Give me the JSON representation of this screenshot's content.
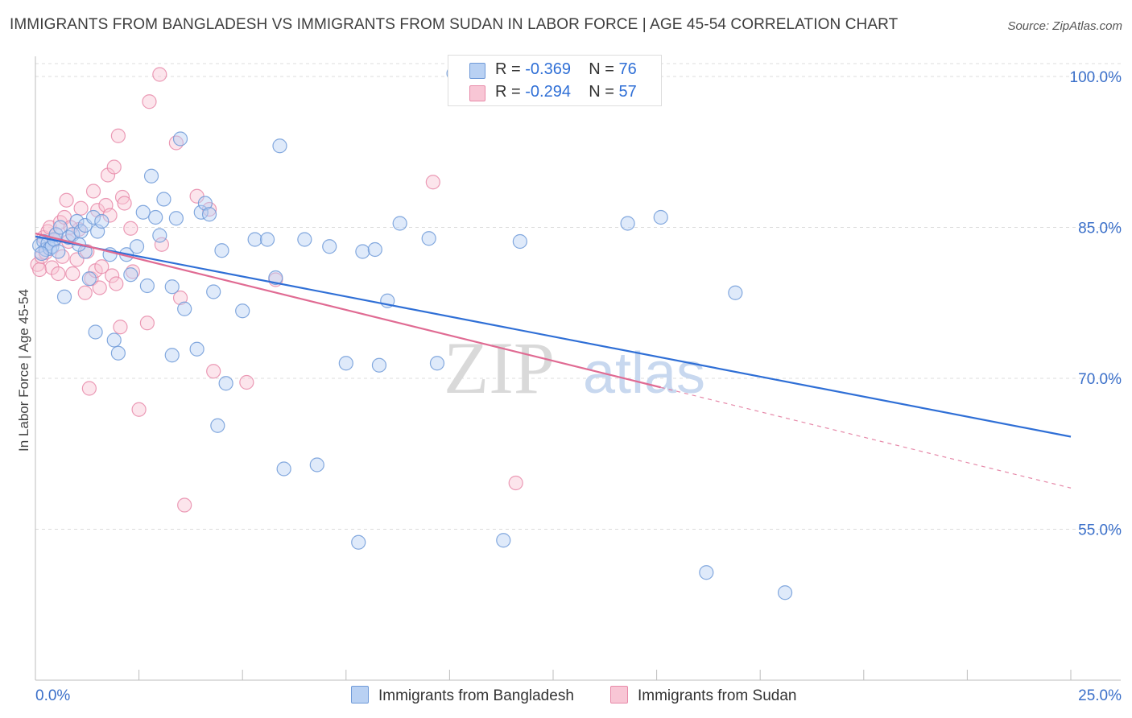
{
  "title": "IMMIGRANTS FROM BANGLADESH VS IMMIGRANTS FROM SUDAN IN LABOR FORCE | AGE 45-54 CORRELATION CHART",
  "source": "Source: ZipAtlas.com",
  "watermark": {
    "zip": "ZIP",
    "atlas": "atlas"
  },
  "legend": {
    "rows": [
      {
        "r_label": "R = ",
        "r_value": "-0.369",
        "n_label": "N = ",
        "n_value": "76"
      },
      {
        "r_label": "R = ",
        "r_value": "-0.294",
        "n_label": "N = ",
        "n_value": "57"
      }
    ]
  },
  "colors": {
    "blue_fill": "#b9d1f3",
    "blue_stroke": "#6f9ad8",
    "blue_line": "#2f6fd6",
    "pink_fill": "#f8c6d5",
    "pink_stroke": "#e88aa9",
    "pink_line": "#e06b93",
    "grid": "#dcdcdc",
    "axis_text": "#3a6fc9"
  },
  "chart_data": {
    "type": "scatter",
    "title": "IMMIGRANTS FROM BANGLADESH VS IMMIGRANTS FROM SUDAN IN LABOR FORCE | AGE 45-54 CORRELATION CHART",
    "xlabel": "",
    "ylabel": "In Labor Force | Age 45-54",
    "xlim": [
      0,
      25
    ],
    "ylim": [
      40,
      102
    ],
    "x_tick_labels": [
      "0.0%",
      "25.0%"
    ],
    "y_ticks": [
      55,
      70,
      85,
      100
    ],
    "y_tick_labels": [
      "55.0%",
      "70.0%",
      "85.0%",
      "100.0%"
    ],
    "grid": "horizontal dashed",
    "legend_position": "top-center",
    "series": [
      {
        "name": "Immigrants from Bangladesh",
        "color": "#6f9ad8",
        "R": -0.369,
        "N": 76,
        "trend": {
          "x": [
            0,
            25
          ],
          "y": [
            84.1,
            64.2
          ],
          "dashed_after": null
        },
        "points": [
          [
            0.1,
            83.2
          ],
          [
            0.2,
            83.6
          ],
          [
            0.25,
            82.8
          ],
          [
            0.3,
            83.4
          ],
          [
            0.35,
            82.9
          ],
          [
            0.4,
            83.1
          ],
          [
            0.45,
            83.8
          ],
          [
            0.5,
            84.3
          ],
          [
            0.6,
            85.0
          ],
          [
            0.7,
            78.1
          ],
          [
            0.8,
            84.0
          ],
          [
            0.9,
            84.3
          ],
          [
            1.0,
            85.6
          ],
          [
            1.1,
            84.6
          ],
          [
            1.2,
            82.6
          ],
          [
            1.2,
            85.2
          ],
          [
            1.3,
            79.9
          ],
          [
            1.4,
            86.0
          ],
          [
            1.45,
            74.6
          ],
          [
            1.5,
            84.6
          ],
          [
            1.6,
            85.6
          ],
          [
            1.8,
            82.3
          ],
          [
            1.9,
            73.8
          ],
          [
            2.0,
            72.5
          ],
          [
            2.2,
            82.3
          ],
          [
            2.3,
            80.3
          ],
          [
            2.6,
            86.5
          ],
          [
            2.8,
            90.1
          ],
          [
            2.9,
            86.0
          ],
          [
            3.0,
            84.2
          ],
          [
            3.1,
            87.8
          ],
          [
            3.3,
            79.1
          ],
          [
            3.3,
            72.3
          ],
          [
            3.4,
            85.9
          ],
          [
            3.5,
            93.8
          ],
          [
            3.6,
            76.9
          ],
          [
            3.9,
            72.9
          ],
          [
            4.0,
            86.5
          ],
          [
            4.1,
            87.4
          ],
          [
            4.3,
            78.6
          ],
          [
            4.4,
            65.3
          ],
          [
            4.5,
            82.7
          ],
          [
            4.6,
            69.5
          ],
          [
            5.0,
            76.7
          ],
          [
            5.3,
            83.8
          ],
          [
            5.6,
            83.8
          ],
          [
            5.8,
            80.0
          ],
          [
            5.9,
            93.1
          ],
          [
            6.0,
            61.0
          ],
          [
            6.5,
            83.8
          ],
          [
            6.8,
            61.4
          ],
          [
            7.1,
            83.1
          ],
          [
            7.5,
            71.5
          ],
          [
            7.8,
            53.7
          ],
          [
            7.9,
            82.6
          ],
          [
            8.2,
            82.8
          ],
          [
            8.3,
            71.3
          ],
          [
            8.5,
            77.7
          ],
          [
            8.8,
            85.4
          ],
          [
            9.5,
            83.9
          ],
          [
            9.7,
            71.5
          ],
          [
            10.1,
            100.3
          ],
          [
            11.3,
            53.9
          ],
          [
            11.7,
            83.6
          ],
          [
            12.1,
            100.1
          ],
          [
            14.3,
            85.4
          ],
          [
            15.1,
            86.0
          ],
          [
            16.2,
            50.7
          ],
          [
            16.9,
            78.5
          ],
          [
            18.1,
            48.7
          ],
          [
            0.15,
            82.4
          ],
          [
            0.55,
            82.6
          ],
          [
            1.05,
            83.3
          ],
          [
            2.45,
            83.1
          ],
          [
            4.2,
            86.3
          ],
          [
            2.7,
            79.2
          ]
        ]
      },
      {
        "name": "Immigrants from Sudan",
        "color": "#e88aa9",
        "R": -0.294,
        "N": 57,
        "trend": {
          "x": [
            0,
            15.1
          ],
          "y": [
            84.4,
            69.1
          ],
          "dashed_after": 15.1,
          "dash_to": {
            "x": 25,
            "y": 59.1
          }
        },
        "points": [
          [
            0.05,
            81.3
          ],
          [
            0.1,
            80.8
          ],
          [
            0.15,
            82.1
          ],
          [
            0.2,
            84.0
          ],
          [
            0.25,
            82.5
          ],
          [
            0.3,
            84.6
          ],
          [
            0.35,
            85.0
          ],
          [
            0.4,
            81.0
          ],
          [
            0.45,
            83.7
          ],
          [
            0.5,
            84.3
          ],
          [
            0.55,
            80.4
          ],
          [
            0.6,
            85.5
          ],
          [
            0.65,
            82.1
          ],
          [
            0.7,
            86.0
          ],
          [
            0.75,
            87.7
          ],
          [
            0.8,
            83.6
          ],
          [
            0.9,
            80.4
          ],
          [
            1.0,
            81.8
          ],
          [
            1.05,
            84.8
          ],
          [
            1.1,
            86.9
          ],
          [
            1.2,
            78.5
          ],
          [
            1.3,
            69.0
          ],
          [
            1.35,
            79.9
          ],
          [
            1.4,
            88.6
          ],
          [
            1.45,
            80.7
          ],
          [
            1.5,
            86.7
          ],
          [
            1.55,
            79.0
          ],
          [
            1.6,
            81.1
          ],
          [
            1.7,
            87.2
          ],
          [
            1.75,
            90.2
          ],
          [
            1.8,
            86.2
          ],
          [
            1.85,
            80.2
          ],
          [
            1.9,
            91.0
          ],
          [
            1.95,
            79.4
          ],
          [
            2.0,
            94.1
          ],
          [
            2.05,
            75.1
          ],
          [
            2.1,
            88.0
          ],
          [
            2.15,
            87.4
          ],
          [
            2.3,
            84.9
          ],
          [
            2.35,
            80.6
          ],
          [
            2.5,
            66.9
          ],
          [
            2.7,
            75.5
          ],
          [
            2.75,
            97.5
          ],
          [
            3.0,
            100.2
          ],
          [
            3.05,
            83.3
          ],
          [
            3.4,
            93.4
          ],
          [
            3.5,
            78.0
          ],
          [
            3.9,
            88.1
          ],
          [
            4.2,
            86.8
          ],
          [
            4.3,
            70.7
          ],
          [
            5.1,
            69.6
          ],
          [
            5.8,
            79.8
          ],
          [
            9.6,
            89.5
          ],
          [
            11.6,
            59.6
          ],
          [
            3.6,
            57.4
          ],
          [
            0.85,
            85.0
          ],
          [
            1.25,
            82.6
          ]
        ]
      }
    ]
  },
  "bottom_legend": [
    {
      "label": "Immigrants from Bangladesh"
    },
    {
      "label": "Immigrants from Sudan"
    }
  ]
}
